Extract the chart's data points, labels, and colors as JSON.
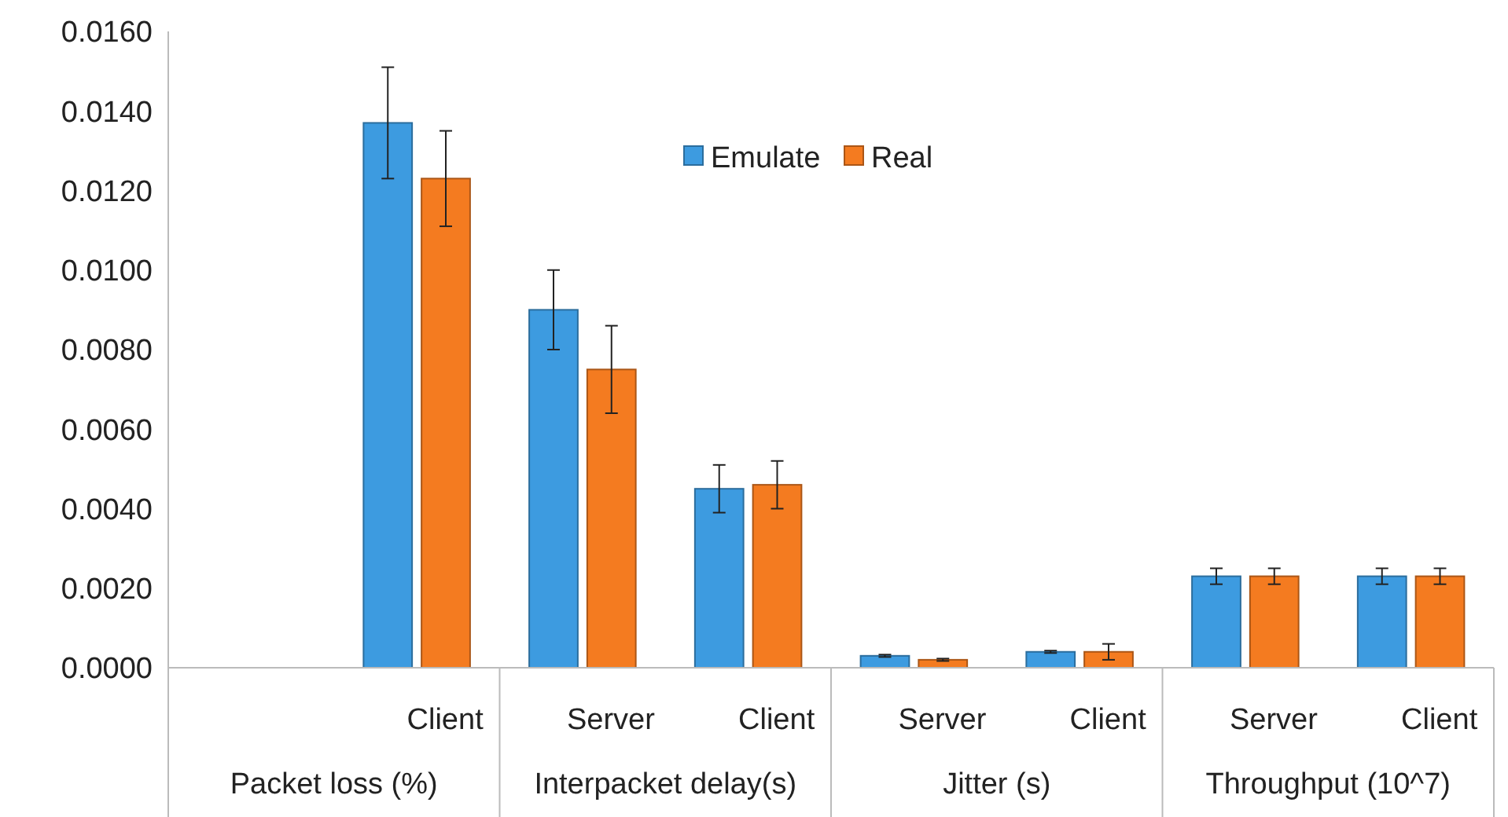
{
  "chart_data": {
    "type": "bar",
    "categories": [
      null,
      "Client",
      "Server",
      "Client",
      "Server",
      "Client",
      "Server",
      "Client"
    ],
    "series": [
      {
        "name": "Emulate",
        "color": "#3d9be0",
        "values": [
          null,
          0.0137,
          0.009,
          0.0045,
          0.0003,
          0.0004,
          0.0023,
          0.0023
        ],
        "errors": [
          null,
          0.0014,
          0.001,
          0.0006,
          3e-05,
          3e-05,
          0.0002,
          0.0002
        ]
      },
      {
        "name": "Real",
        "color": "#f47b20",
        "values": [
          null,
          0.0123,
          0.0075,
          0.0046,
          0.0002,
          0.0004,
          0.0023,
          0.0023
        ],
        "errors": [
          null,
          0.0012,
          0.0011,
          0.0006,
          3e-05,
          0.0002,
          0.0002,
          0.0002
        ]
      }
    ],
    "annotations": [
      "Packet loss (%)",
      "Interpacket delay(s)",
      "Jitter (s)",
      "Throughput (10^7)"
    ],
    "ylim": [
      0,
      0.016
    ],
    "yticks": [
      {
        "value": 0,
        "label": "0.0000"
      },
      {
        "value": 0.002,
        "label": "0.0020"
      },
      {
        "value": 0.004,
        "label": "0.0040"
      },
      {
        "value": 0.006,
        "label": "0.0060"
      },
      {
        "value": 0.008,
        "label": "0.0080"
      },
      {
        "value": 0.01,
        "label": "0.0100"
      },
      {
        "value": 0.012,
        "label": "0.0120"
      },
      {
        "value": 0.014,
        "label": "0.0140"
      },
      {
        "value": 0.016,
        "label": "0.0160"
      }
    ],
    "grid": false,
    "legend": "top"
  }
}
